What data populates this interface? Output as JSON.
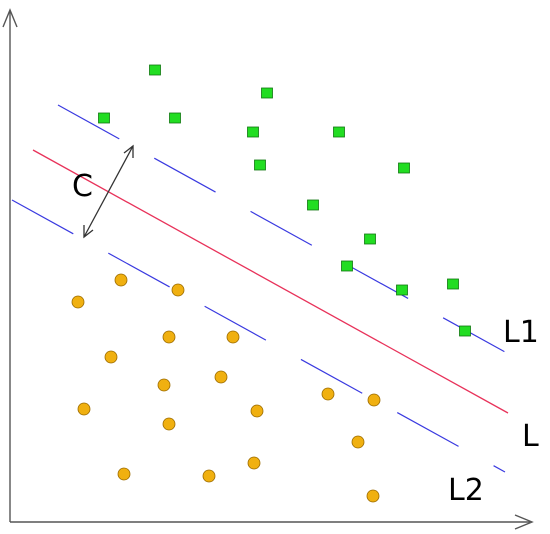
{
  "labels": {
    "margin": "C",
    "upper_margin": "L1",
    "decision_boundary": "L",
    "lower_margin": "L2"
  },
  "colors": {
    "axis": "#555555",
    "boundary": "#e8325a",
    "margin_lines": "#3a3ae0",
    "class_square_fill": "#22dd22",
    "class_square_stroke": "#117711",
    "class_circle_fill": "#f0b010",
    "class_circle_stroke": "#9a6a00",
    "arrow": "#333333"
  },
  "shapes": {
    "class_a": "green-square",
    "class_b": "orange-circle"
  }
}
